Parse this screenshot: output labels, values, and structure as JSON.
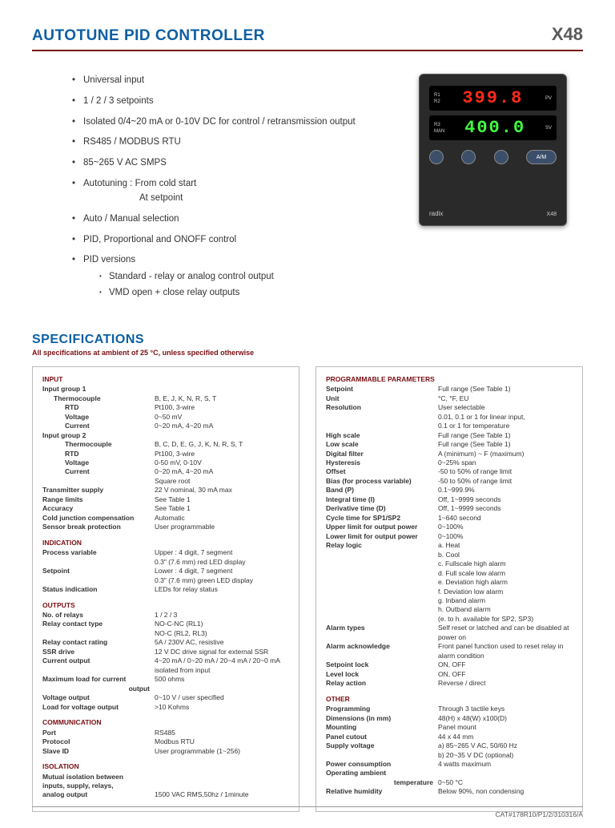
{
  "header": {
    "title": "AUTOTUNE PID CONTROLLER",
    "model": "X48"
  },
  "features": {
    "items": [
      "Universal input",
      "1 / 2 / 3 setpoints",
      "Isolated 0/4~20 mA or 0-10V DC for control / retransmission output",
      "RS485 / MODBUS RTU",
      "85~265 V AC SMPS",
      "Autotuning : From cold start",
      "Auto / Manual selection",
      "PID, Proportional and ONOFF control",
      "PID versions"
    ],
    "autotune_sub": "At setpoint",
    "pid_sub": [
      "Standard - relay or analog control output",
      "VMD open + close relay outputs"
    ]
  },
  "device": {
    "pv_label_r1": "R1",
    "pv_label_r2": "R2",
    "pv_label": "PV",
    "sv_label_r3": "R3",
    "sv_label_man": "MAN",
    "sv_label": "SV",
    "pv_value": "399.8",
    "sv_value": "400.0",
    "btn_am": "A/M",
    "brand": "radix",
    "model_small": "X48"
  },
  "specs": {
    "title": "SPECIFICATIONS",
    "subtitle": "All specifications at ambient of 25 °C, unless specified otherwise"
  },
  "col1": {
    "input": {
      "h": "INPUT",
      "ig1": "Input group 1",
      "tc": "Thermocouple",
      "tc_v": "B, E, J, K, N, R, S, T",
      "rtd": "RTD",
      "rtd_v": "Pt100, 3-wire",
      "volt": "Voltage",
      "volt_v": "0~50 mV",
      "curr": "Current",
      "curr_v": "0~20 mA, 4~20 mA",
      "ig2": "Input group 2",
      "tc2": "Thermocouple",
      "tc2_v": "B, C, D, E, G, J, K, N, R, S, T",
      "rtd2": "RTD",
      "rtd2_v": "Pt100, 3-wire",
      "volt2": "Voltage",
      "volt2_v": "0-50 mV, 0-10V",
      "curr2": "Current",
      "curr2_v": "0~20 mA, 4~20 mA",
      "sqrt": "Square root",
      "tx": "Transmitter supply",
      "tx_v": "22 V nominal, 30 mA max",
      "rl": "Range limits",
      "rl_v": "See Table 1",
      "acc": "Accuracy",
      "acc_v": "See Table 1",
      "cjc": "Cold junction compensation",
      "cjc_v": "Automatic",
      "sbp": "Sensor break protection",
      "sbp_v": "User programmable"
    },
    "indication": {
      "h": "INDICATION",
      "pv": "Process variable",
      "pv_v": "Upper : 4 digit, 7 segment",
      "pv_v2": "0.3\" (7.6 mm) red LED display",
      "sp": "Setpoint",
      "sp_v": "Lower : 4 digit, 7 segment",
      "sp_v2": "0.3\" (7.6 mm) green LED display",
      "si": "Status indication",
      "si_v": "LEDs for relay status"
    },
    "outputs": {
      "h": "OUTPUTS",
      "nr": "No. of relays",
      "nr_v": "1 / 2 / 3",
      "rct": "Relay contact type",
      "rct_v": "NO-C-NC (RL1)",
      "rct_v2": "NO-C (RL2, RL3)",
      "rcr": "Relay contact rating",
      "rcr_v": "5A / 230V AC, resistive",
      "ssr": "SSR drive",
      "ssr_v": "12 V DC drive signal for external SSR",
      "co": "Current output",
      "co_v": "4~20 mA / 0~20 mA / 20~4 mA / 20~0 mA isolated from input",
      "ml": "Maximum load for current",
      "ml2": "output",
      "ml_v": "500 ohms",
      "vo": "Voltage output",
      "vo_v": "0~10 V / user specified",
      "lvo": "Load for voltage output",
      "lvo_v": ">10 Kohms"
    },
    "comm": {
      "h": "COMMUNICATION",
      "port": "Port",
      "port_v": "RS485",
      "proto": "Protocol",
      "proto_v": "Modbus RTU",
      "sid": "Slave ID",
      "sid_v": "User programmable (1~256)"
    },
    "iso": {
      "h": "ISOLATION",
      "mi1": "Mutual isolation between",
      "mi2": "inputs, supply, relays,",
      "mi3": "analog output",
      "mi_v": "1500 VAC RMS,50hz / 1minute"
    }
  },
  "col2": {
    "pp": {
      "h": "PROGRAMMABLE PARAMETERS",
      "sp": "Setpoint",
      "sp_v": "Full range (See Table 1)",
      "unit": "Unit",
      "unit_v": "°C, °F, EU",
      "res": "Resolution",
      "res_v": "User selectable",
      "res_v2": "0.01, 0.1 or 1 for linear input,",
      "res_v3": "0.1 or 1 for temperature",
      "hs": "High scale",
      "hs_v": "Full range (See Table 1)",
      "ls": "Low scale",
      "ls_v": "Full range (See Table 1)",
      "df": "Digital filter",
      "df_v": "A (minimum) ~ F (maximum)",
      "hy": "Hysteresis",
      "hy_v": "0~25% span",
      "off": "Offset",
      "off_v": "-50 to 50% of range limit",
      "bias": "Bias (for process variable)",
      "bias_v": "-50 to 50% of range limit",
      "band": "Band (P)",
      "band_v": "0.1~999.9%",
      "it": "Integral time (I)",
      "it_v": "Off, 1~9999 seconds",
      "dt": "Derivative time (D)",
      "dt_v": "Off, 1~9999 seconds",
      "ct": "Cycle time for SP1/SP2",
      "ct_v": "1~640 second",
      "ul": "Upper limit for output power",
      "ul_v": "0~100%",
      "ll": "Lower limit for output power",
      "ll_v": "0~100%",
      "rl": "Relay logic",
      "rl_a": "a. Heat",
      "rl_b": "b. Cool",
      "rl_c": "c. Fullscale high alarm",
      "rl_d": "d. Full scale low alarm",
      "rl_e": "e. Deviation high alarm",
      "rl_f": "f.  Deviation low alarm",
      "rl_g": "g. Inband alarm",
      "rl_h": "h. Outband alarm",
      "rl_i": "(e. to h. available for SP2, SP3)",
      "at": "Alarm types",
      "at_v": "Self reset or latched and can be disabled at power on",
      "aa": "Alarm acknowledge",
      "aa_v": "Front panel function used to reset relay in alarm condition",
      "spl": "Setpoint lock",
      "spl_v": "ON, OFF",
      "ll2": "Level lock",
      "ll2_v": "ON, OFF",
      "ra": "Relay action",
      "ra_v": "Reverse / direct"
    },
    "other": {
      "h": "OTHER",
      "prog": "Programming",
      "prog_v": "Through 3 tactile keys",
      "dim": "Dimensions (in mm)",
      "dim_v": "48(H) x 48(W) x100(D)",
      "mnt": "Mounting",
      "mnt_v": "Panel mount",
      "pc": "Panel cutout",
      "pc_v": "44 x 44 mm",
      "sv": "Supply voltage",
      "sv_v": "a)  85~265 V AC, 50/60 Hz",
      "sv_v2": "b)  20~35 V DC (optional)",
      "pw": "Power consumption",
      "pw_v": "4 watts maximum",
      "oat": "Operating ambient",
      "oat2": "temperature",
      "oat_v": "0~50 °C",
      "rh": "Relative humidity",
      "rh_v": "Below 90%, non condensing"
    }
  },
  "footer": "CAT#178R10/P1/2/310316/A"
}
